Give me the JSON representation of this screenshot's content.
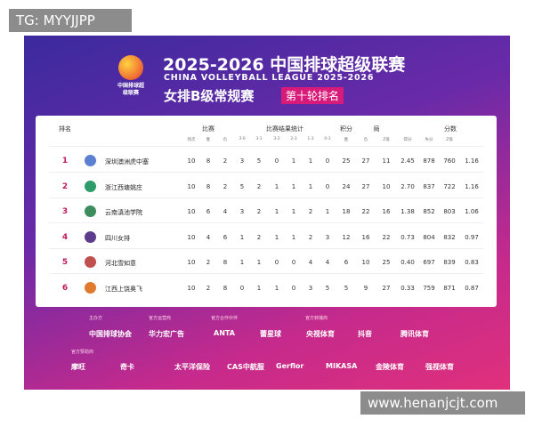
{
  "watermark_top": "TG: MYYJJPP",
  "watermark_bottom": "www.henanjcjt.com",
  "header": {
    "logo_text": "中国排球超级联赛",
    "title": "2025-2026 中国排球超级联赛",
    "subtitle": "CHINA VOLLEYBALL LEAGUE 2025-2026",
    "stage": "女排B级常规赛",
    "round": "第十轮排名"
  },
  "table": {
    "groups": [
      "排名",
      "比赛",
      "比赛结果统计",
      "积分",
      "局",
      "分数"
    ],
    "subheaders": [
      "场次",
      "胜",
      "负",
      "3-0",
      "3-1",
      "3-2",
      "2-3",
      "1-3",
      "0-3",
      "胜",
      "负",
      "Z值",
      "得分",
      "失分",
      "Z值"
    ],
    "rows": [
      {
        "rank": 1,
        "team": "深圳澳洲虎中塞",
        "stats": [
          10,
          8,
          2,
          3,
          5,
          0,
          1,
          1,
          0,
          25,
          27,
          11,
          "2.45",
          878,
          760,
          "1.16"
        ]
      },
      {
        "rank": 2,
        "team": "浙江西塘姚庄",
        "stats": [
          10,
          8,
          2,
          5,
          2,
          1,
          1,
          1,
          0,
          24,
          27,
          10,
          "2.70",
          837,
          722,
          "1.16"
        ]
      },
      {
        "rank": 3,
        "team": "云南滇池学院",
        "stats": [
          10,
          6,
          4,
          3,
          2,
          1,
          1,
          2,
          1,
          18,
          22,
          16,
          "1.38",
          852,
          803,
          "1.06"
        ]
      },
      {
        "rank": 4,
        "team": "四川女排",
        "stats": [
          10,
          4,
          6,
          1,
          2,
          1,
          1,
          2,
          3,
          12,
          16,
          22,
          "0.73",
          804,
          832,
          "0.97"
        ]
      },
      {
        "rank": 5,
        "team": "河北雪如意",
        "stats": [
          10,
          2,
          8,
          1,
          1,
          0,
          0,
          4,
          4,
          6,
          10,
          25,
          "0.40",
          697,
          839,
          "0.83"
        ]
      },
      {
        "rank": 6,
        "team": "江西上饶奥飞",
        "stats": [
          10,
          2,
          8,
          0,
          1,
          1,
          0,
          3,
          5,
          5,
          9,
          27,
          "0.33",
          759,
          871,
          "0.87"
        ]
      }
    ]
  },
  "sponsors": {
    "roles": [
      "主办方",
      "官方运营商",
      "官方合作伙伴",
      "官方转播商",
      "官方赞助商"
    ],
    "row1": [
      "中国排球协会",
      "华力宏广告",
      "ANTA",
      "蕾星球",
      "央视体育",
      "抖音",
      "腾讯体育"
    ],
    "row2": [
      "摩旺",
      "奇卡",
      "太平洋保险",
      "CAS中航服",
      "Gerflor",
      "MIKASA",
      "金陵体育",
      "强视体育"
    ]
  }
}
